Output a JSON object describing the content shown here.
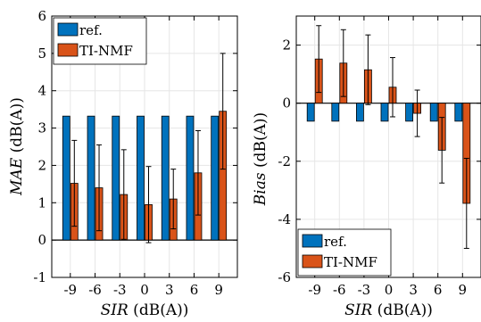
{
  "colors": {
    "ref": "#0072BD",
    "tinmf": "#D95319",
    "grid": "#e6e6e6"
  },
  "chart_data": [
    {
      "type": "bar",
      "categories": [
        "-9",
        "-6",
        "-3",
        "0",
        "3",
        "6",
        "9"
      ],
      "xlabel_var": "SIR",
      "xlabel_unit": " (dB(A))",
      "ylabel_var": "MAE",
      "ylabel_unit": " (dB(A))",
      "ylim": [
        -1,
        6
      ],
      "yticks": [
        "-1",
        "0",
        "1",
        "2",
        "3",
        "4",
        "5",
        "6"
      ],
      "legend_position": "top-left",
      "grid": true,
      "series": [
        {
          "name": "ref.",
          "values": [
            3.32,
            3.32,
            3.32,
            3.32,
            3.32,
            3.32,
            3.32
          ],
          "err": [
            0,
            0,
            0,
            0,
            0,
            0,
            0
          ]
        },
        {
          "name": "TI-NMF",
          "values": [
            1.52,
            1.4,
            1.22,
            0.95,
            1.1,
            1.8,
            3.45
          ],
          "err": [
            1.15,
            1.15,
            1.2,
            1.02,
            0.8,
            1.13,
            1.55
          ]
        }
      ]
    },
    {
      "type": "bar",
      "categories": [
        "-9",
        "-6",
        "-3",
        "0",
        "3",
        "6",
        "9"
      ],
      "xlabel_var": "SIR",
      "xlabel_unit": " (dB(A))",
      "ylabel_var": "Bias",
      "ylabel_unit": " (dB(A))",
      "ylim": [
        -6,
        3
      ],
      "yticks": [
        "-6",
        "-4",
        "-2",
        "0",
        "2"
      ],
      "legend_position": "bottom-left",
      "grid": true,
      "series": [
        {
          "name": "ref.",
          "values": [
            -0.62,
            -0.62,
            -0.62,
            -0.62,
            -0.62,
            -0.62,
            -0.62
          ],
          "err": [
            0,
            0,
            0,
            0,
            0,
            0,
            0
          ]
        },
        {
          "name": "TI-NMF",
          "values": [
            1.52,
            1.38,
            1.15,
            0.55,
            -0.35,
            -1.62,
            -3.45
          ],
          "err": [
            1.15,
            1.15,
            1.2,
            1.02,
            0.8,
            1.13,
            1.55
          ]
        }
      ]
    }
  ]
}
